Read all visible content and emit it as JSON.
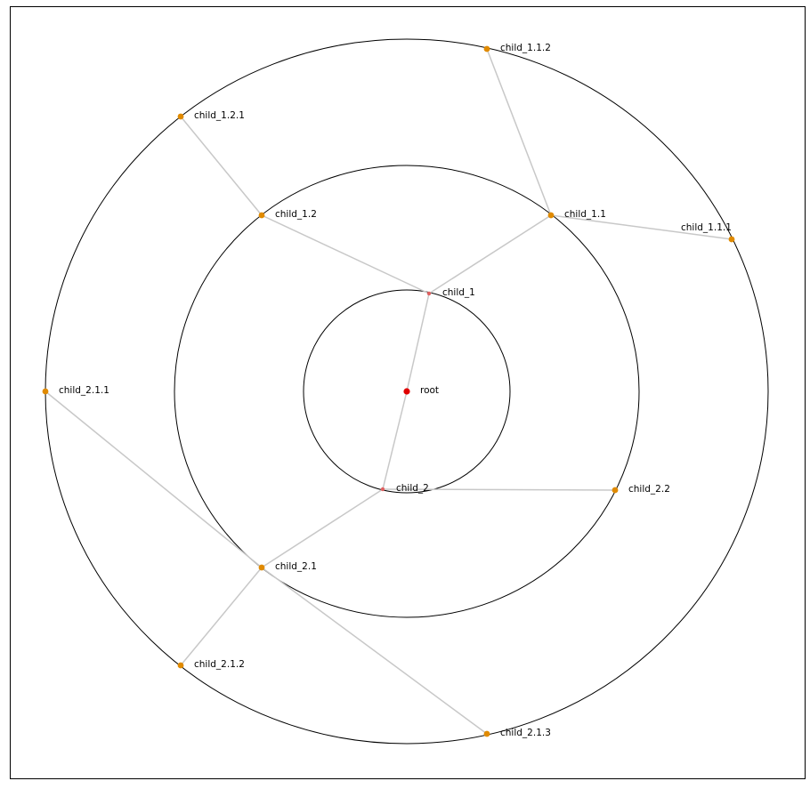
{
  "diagram": {
    "type": "radial-tree",
    "colors": {
      "frame": "#000000",
      "ring": "#000000",
      "edge": "#c8c8c8",
      "root": "#e00000",
      "level1": "#e06060",
      "leaf": "#e08a00"
    },
    "nodes": [
      {
        "id": "root",
        "label": "root",
        "parent": null,
        "level": 0
      },
      {
        "id": "child_1",
        "label": "child_1",
        "parent": "root",
        "level": 1
      },
      {
        "id": "child_2",
        "label": "child_2",
        "parent": "root",
        "level": 1
      },
      {
        "id": "child_1.1",
        "label": "child_1.1",
        "parent": "child_1",
        "level": 2
      },
      {
        "id": "child_1.2",
        "label": "child_1.2",
        "parent": "child_1",
        "level": 2
      },
      {
        "id": "child_2.1",
        "label": "child_2.1",
        "parent": "child_2",
        "level": 2
      },
      {
        "id": "child_2.2",
        "label": "child_2.2",
        "parent": "child_2",
        "level": 2
      },
      {
        "id": "child_1.1.1",
        "label": "child_1.1.1",
        "parent": "child_1.1",
        "level": 3
      },
      {
        "id": "child_1.1.2",
        "label": "child_1.1.2",
        "parent": "child_1.1",
        "level": 3
      },
      {
        "id": "child_1.2.1",
        "label": "child_1.2.1",
        "parent": "child_1.2",
        "level": 3
      },
      {
        "id": "child_2.1.1",
        "label": "child_2.1.1",
        "parent": "child_2.1",
        "level": 3
      },
      {
        "id": "child_2.1.2",
        "label": "child_2.1.2",
        "parent": "child_2.1",
        "level": 3
      },
      {
        "id": "child_2.1.3",
        "label": "child_2.1.3",
        "parent": "child_2.1",
        "level": 3
      }
    ]
  }
}
